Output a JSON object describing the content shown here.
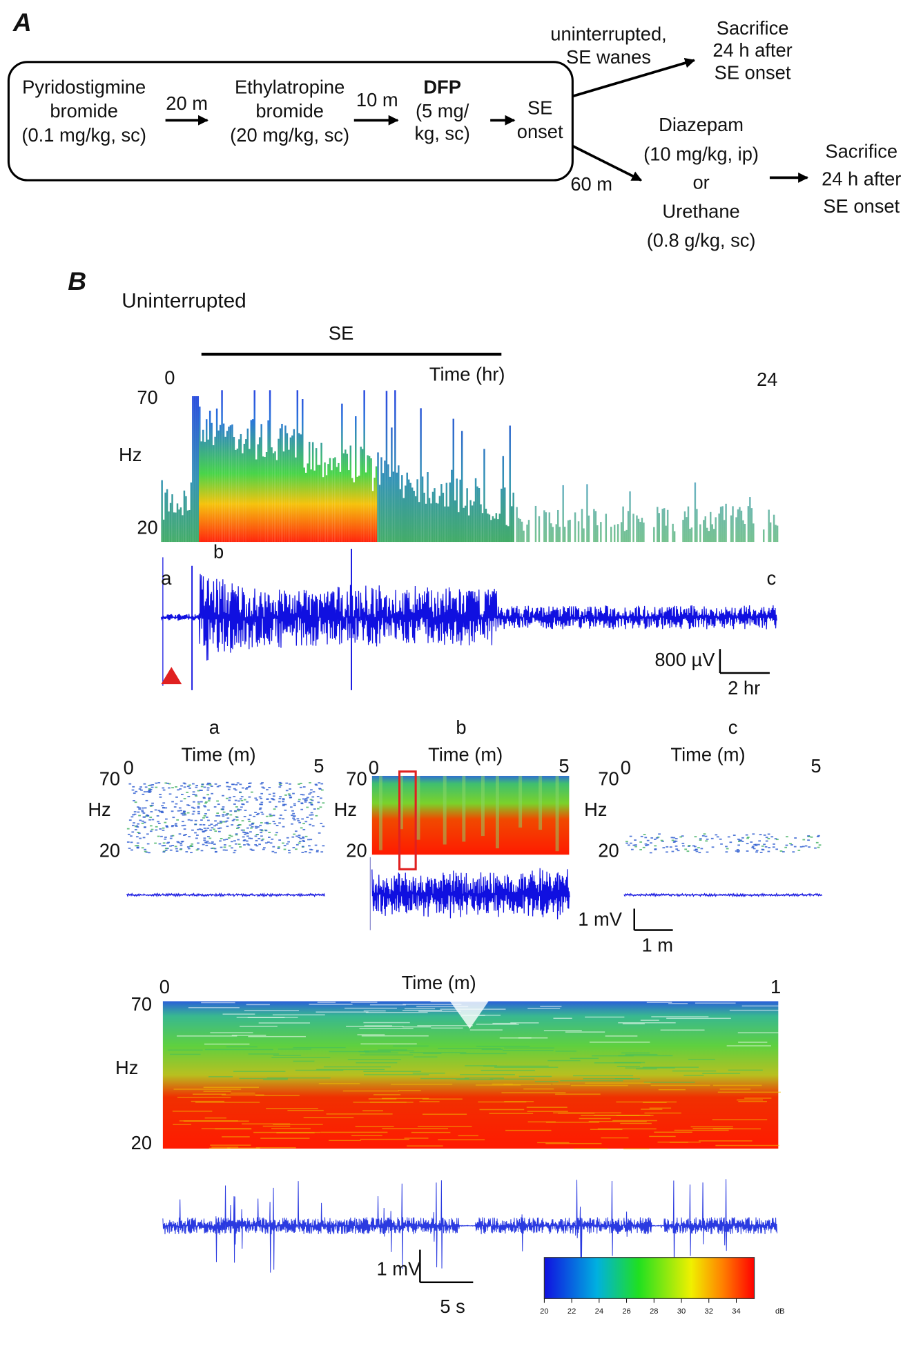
{
  "panel_a": {
    "label": "A",
    "protocol": [
      {
        "lines": [
          "Pyridostigmine",
          "bromide",
          "(0.1 mg/kg, sc)"
        ]
      },
      {
        "lines": [
          "Ethylatropine",
          "bromide",
          "(20 mg/kg, sc)"
        ]
      },
      {
        "lines": [
          "DFP",
          "(5 mg/",
          "kg, sc)"
        ]
      },
      {
        "lines": [
          "SE",
          "onset"
        ]
      }
    ],
    "intervals": [
      "20 m",
      "10 m"
    ],
    "branch_uninterrupted": {
      "condition": [
        "uninterrupted,",
        "SE wanes"
      ],
      "outcome": [
        "Sacrifice",
        "24 h after",
        "SE onset"
      ]
    },
    "branch_treated": {
      "delay": "60 m",
      "treatment": [
        "Diazepam",
        "(10 mg/kg, ip)",
        "or",
        "Urethane",
        "(0.8 g/kg, sc)"
      ],
      "outcome": [
        "Sacrifice",
        "24 h after",
        "SE onset"
      ]
    }
  },
  "panel_b": {
    "label": "B",
    "title": "Uninterrupted",
    "se_label": "SE",
    "overview": {
      "time_label": "Time (hr)",
      "time_start": "0",
      "time_end": "24",
      "freq_high": "70",
      "freq_label": "Hz",
      "freq_low": "20",
      "markers": [
        "a",
        "b",
        "c"
      ],
      "scale_amplitude": "800 µV",
      "scale_time": "2 hr"
    },
    "insets": [
      {
        "marker": "a",
        "time_label": "Time (m)",
        "time_start": "0",
        "time_end": "5",
        "freq_high": "70",
        "freq_label": "Hz",
        "freq_low": "20"
      },
      {
        "marker": "b",
        "time_label": "Time (m)",
        "time_start": "0",
        "time_end": "5",
        "freq_high": "70",
        "freq_label": "Hz",
        "freq_low": "20"
      },
      {
        "marker": "c",
        "time_label": "Time (m)",
        "time_start": "0",
        "time_end": "5",
        "freq_high": "70",
        "freq_label": "Hz",
        "freq_low": "20"
      }
    ],
    "inset_scale": {
      "amplitude": "1 mV",
      "time": "1 m"
    },
    "expanded": {
      "time_label": "Time (m)",
      "time_start": "0",
      "time_end": "1",
      "freq_high": "70",
      "freq_label": "Hz",
      "freq_low": "20",
      "scale_amplitude": "1 mV",
      "scale_time": "5 s"
    },
    "colorbar": {
      "ticks": [
        "20",
        "22",
        "24",
        "26",
        "28",
        "30",
        "32",
        "34"
      ],
      "unit": "dB"
    }
  }
}
